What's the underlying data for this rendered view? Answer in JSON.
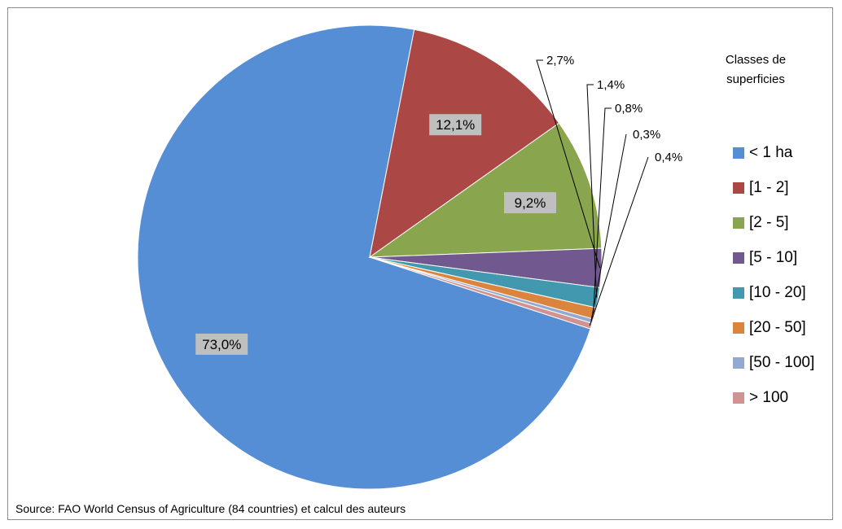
{
  "chart_data": {
    "type": "pie",
    "title": "",
    "legend_title": "Classes de superficies",
    "legend_placement": "right",
    "categories": [
      "< 1 ha",
      "[1 - 2]",
      "[2 - 5]",
      "[5 - 10]",
      "[10 - 20]",
      "[20 - 50]",
      "[50 - 100]",
      "> 100"
    ],
    "values": [
      73.0,
      12.1,
      9.2,
      2.7,
      1.4,
      0.8,
      0.3,
      0.4
    ],
    "labels": [
      "73,0%",
      "12,1%",
      "9,2%",
      "2,7%",
      "1,4%",
      "0,8%",
      "0,3%",
      "0,4%"
    ],
    "colors": [
      "#558ed5",
      "#ab4744",
      "#89a54e",
      "#71588f",
      "#4198af",
      "#db843d",
      "#93a9cf",
      "#d19392"
    ]
  },
  "source_note": "Source: FAO World Census of Agriculture (84 countries) et calcul des auteurs"
}
